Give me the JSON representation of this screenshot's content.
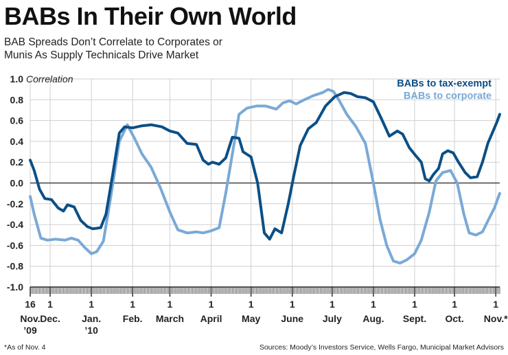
{
  "header": {
    "title": "BABs In Their Own World",
    "subtitle_line1": "BAB Spreads Don’t Correlate to Corporates or",
    "subtitle_line2": "Munis As Supply Technicals Drive Market"
  },
  "footer": {
    "footnote": "*As of Nov. 4",
    "sources": "Sources: Moody’s Investors Service, Wells Fargo, Municipal Market Advisors"
  },
  "chart_data": {
    "type": "line",
    "ylabel": "Correlation",
    "ylim": [
      -1.0,
      1.0
    ],
    "yticks": [
      "1.0",
      "0.8",
      "0.6",
      "0.4",
      "0.2",
      "0.0",
      "-0.2",
      "-0.4",
      "-0.6",
      "-0.8",
      "-1.0"
    ],
    "x_range": [
      "2009-11-16",
      "2010-11-04"
    ],
    "xticks": [
      {
        "date": "2009-11-16",
        "day": "16",
        "month": "Nov.",
        "year": "’09"
      },
      {
        "date": "2009-12-01",
        "day": "1",
        "month": "Dec.",
        "year": ""
      },
      {
        "date": "2010-01-01",
        "day": "1",
        "month": "Jan.",
        "year": "’10"
      },
      {
        "date": "2010-02-01",
        "day": "1",
        "month": "Feb.",
        "year": ""
      },
      {
        "date": "2010-03-01",
        "day": "1",
        "month": "March",
        "year": ""
      },
      {
        "date": "2010-04-01",
        "day": "1",
        "month": "April",
        "year": ""
      },
      {
        "date": "2010-05-01",
        "day": "1",
        "month": "May",
        "year": ""
      },
      {
        "date": "2010-06-01",
        "day": "1",
        "month": "June",
        "year": ""
      },
      {
        "date": "2010-07-01",
        "day": "1",
        "month": "July",
        "year": ""
      },
      {
        "date": "2010-08-01",
        "day": "1",
        "month": "Aug.",
        "year": ""
      },
      {
        "date": "2010-09-01",
        "day": "1",
        "month": "Sept.",
        "year": ""
      },
      {
        "date": "2010-10-01",
        "day": "1",
        "month": "Oct.",
        "year": ""
      },
      {
        "date": "2010-11-01",
        "day": "1",
        "month": "Nov.*",
        "year": ""
      }
    ],
    "legend_position": "top-right",
    "series": [
      {
        "name": "BABs to tax-exempt",
        "color": "#0b4f86",
        "points": [
          [
            "2009-11-16",
            0.22
          ],
          [
            "2009-11-19",
            0.12
          ],
          [
            "2009-11-23",
            -0.06
          ],
          [
            "2009-11-27",
            -0.15
          ],
          [
            "2009-12-02",
            -0.16
          ],
          [
            "2009-12-07",
            -0.24
          ],
          [
            "2009-12-11",
            -0.27
          ],
          [
            "2009-12-14",
            -0.21
          ],
          [
            "2009-12-19",
            -0.23
          ],
          [
            "2009-12-24",
            -0.36
          ],
          [
            "2009-12-29",
            -0.42
          ],
          [
            "2010-01-02",
            -0.44
          ],
          [
            "2010-01-08",
            -0.43
          ],
          [
            "2010-01-12",
            -0.3
          ],
          [
            "2010-01-17",
            0.08
          ],
          [
            "2010-01-22",
            0.48
          ],
          [
            "2010-01-26",
            0.54
          ],
          [
            "2010-02-01",
            0.53
          ],
          [
            "2010-02-08",
            0.55
          ],
          [
            "2010-02-15",
            0.56
          ],
          [
            "2010-02-23",
            0.54
          ],
          [
            "2010-03-01",
            0.5
          ],
          [
            "2010-03-07",
            0.48
          ],
          [
            "2010-03-14",
            0.38
          ],
          [
            "2010-03-21",
            0.37
          ],
          [
            "2010-03-26",
            0.22
          ],
          [
            "2010-03-30",
            0.18
          ],
          [
            "2010-04-02",
            0.2
          ],
          [
            "2010-04-07",
            0.18
          ],
          [
            "2010-04-12",
            0.24
          ],
          [
            "2010-04-17",
            0.44
          ],
          [
            "2010-04-22",
            0.43
          ],
          [
            "2010-04-25",
            0.3
          ],
          [
            "2010-05-01",
            0.25
          ],
          [
            "2010-05-06",
            0.0
          ],
          [
            "2010-05-11",
            -0.48
          ],
          [
            "2010-05-15",
            -0.54
          ],
          [
            "2010-05-19",
            -0.44
          ],
          [
            "2010-05-24",
            -0.48
          ],
          [
            "2010-05-29",
            -0.2
          ],
          [
            "2010-06-02",
            0.06
          ],
          [
            "2010-06-07",
            0.36
          ],
          [
            "2010-06-13",
            0.52
          ],
          [
            "2010-06-19",
            0.58
          ],
          [
            "2010-06-26",
            0.74
          ],
          [
            "2010-07-03",
            0.83
          ],
          [
            "2010-07-10",
            0.87
          ],
          [
            "2010-07-15",
            0.86
          ],
          [
            "2010-07-20",
            0.83
          ],
          [
            "2010-07-26",
            0.82
          ],
          [
            "2010-08-01",
            0.78
          ],
          [
            "2010-08-07",
            0.62
          ],
          [
            "2010-08-13",
            0.45
          ],
          [
            "2010-08-19",
            0.5
          ],
          [
            "2010-08-23",
            0.47
          ],
          [
            "2010-08-28",
            0.34
          ],
          [
            "2010-09-02",
            0.26
          ],
          [
            "2010-09-06",
            0.2
          ],
          [
            "2010-09-09",
            0.04
          ],
          [
            "2010-09-12",
            0.02
          ],
          [
            "2010-09-15",
            0.08
          ],
          [
            "2010-09-19",
            0.14
          ],
          [
            "2010-09-22",
            0.28
          ],
          [
            "2010-09-26",
            0.31
          ],
          [
            "2010-09-30",
            0.29
          ],
          [
            "2010-10-04",
            0.2
          ],
          [
            "2010-10-09",
            0.1
          ],
          [
            "2010-10-13",
            0.05
          ],
          [
            "2010-10-18",
            0.06
          ],
          [
            "2010-10-22",
            0.2
          ],
          [
            "2010-10-26",
            0.38
          ],
          [
            "2010-10-30",
            0.5
          ],
          [
            "2010-11-02",
            0.59
          ],
          [
            "2010-11-04",
            0.66
          ]
        ]
      },
      {
        "name": "BABs to corporate",
        "color": "#7aa9d6",
        "points": [
          [
            "2009-11-16",
            -0.13
          ],
          [
            "2009-11-19",
            -0.3
          ],
          [
            "2009-11-24",
            -0.53
          ],
          [
            "2009-11-29",
            -0.55
          ],
          [
            "2009-12-05",
            -0.54
          ],
          [
            "2009-12-12",
            -0.55
          ],
          [
            "2009-12-17",
            -0.53
          ],
          [
            "2009-12-22",
            -0.55
          ],
          [
            "2009-12-27",
            -0.62
          ],
          [
            "2010-01-01",
            -0.68
          ],
          [
            "2010-01-05",
            -0.66
          ],
          [
            "2010-01-10",
            -0.56
          ],
          [
            "2010-01-16",
            -0.1
          ],
          [
            "2010-01-22",
            0.4
          ],
          [
            "2010-01-28",
            0.56
          ],
          [
            "2010-02-02",
            0.44
          ],
          [
            "2010-02-08",
            0.28
          ],
          [
            "2010-02-15",
            0.15
          ],
          [
            "2010-02-22",
            -0.05
          ],
          [
            "2010-03-01",
            -0.28
          ],
          [
            "2010-03-07",
            -0.45
          ],
          [
            "2010-03-14",
            -0.48
          ],
          [
            "2010-03-21",
            -0.47
          ],
          [
            "2010-03-26",
            -0.48
          ],
          [
            "2010-04-01",
            -0.46
          ],
          [
            "2010-04-07",
            -0.43
          ],
          [
            "2010-04-12",
            -0.1
          ],
          [
            "2010-04-17",
            0.28
          ],
          [
            "2010-04-22",
            0.66
          ],
          [
            "2010-04-28",
            0.72
          ],
          [
            "2010-05-05",
            0.74
          ],
          [
            "2010-05-12",
            0.74
          ],
          [
            "2010-05-20",
            0.71
          ],
          [
            "2010-05-25",
            0.77
          ],
          [
            "2010-05-30",
            0.79
          ],
          [
            "2010-06-04",
            0.76
          ],
          [
            "2010-06-10",
            0.8
          ],
          [
            "2010-06-17",
            0.84
          ],
          [
            "2010-06-24",
            0.87
          ],
          [
            "2010-06-28",
            0.9
          ],
          [
            "2010-07-02",
            0.88
          ],
          [
            "2010-07-06",
            0.8
          ],
          [
            "2010-07-12",
            0.66
          ],
          [
            "2010-07-19",
            0.54
          ],
          [
            "2010-07-26",
            0.38
          ],
          [
            "2010-08-01",
            0.0
          ],
          [
            "2010-08-06",
            -0.35
          ],
          [
            "2010-08-11",
            -0.6
          ],
          [
            "2010-08-16",
            -0.75
          ],
          [
            "2010-08-21",
            -0.77
          ],
          [
            "2010-08-26",
            -0.74
          ],
          [
            "2010-09-01",
            -0.68
          ],
          [
            "2010-09-06",
            -0.55
          ],
          [
            "2010-09-12",
            -0.28
          ],
          [
            "2010-09-17",
            0.02
          ],
          [
            "2010-09-22",
            0.1
          ],
          [
            "2010-09-28",
            0.12
          ],
          [
            "2010-10-03",
            0.0
          ],
          [
            "2010-10-08",
            -0.3
          ],
          [
            "2010-10-12",
            -0.48
          ],
          [
            "2010-10-17",
            -0.5
          ],
          [
            "2010-10-22",
            -0.47
          ],
          [
            "2010-10-27",
            -0.34
          ],
          [
            "2010-10-31",
            -0.24
          ],
          [
            "2010-11-04",
            -0.1
          ]
        ]
      }
    ]
  }
}
